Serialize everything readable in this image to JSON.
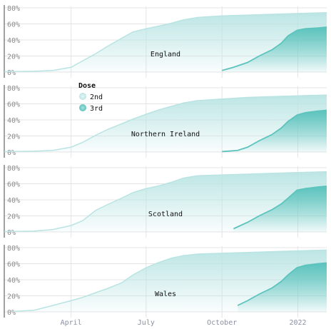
{
  "chart_data": {
    "type": "area",
    "facets": [
      "England",
      "Northern Ireland",
      "Scotland",
      "Wales"
    ],
    "y_ticks": [
      "0%",
      "20%",
      "40%",
      "60%",
      "80%"
    ],
    "ylim": [
      0,
      80
    ],
    "x_ticks": [
      {
        "label": "April",
        "date": "2021-04-01"
      },
      {
        "label": "July",
        "date": "2021-07-01"
      },
      {
        "label": "October",
        "date": "2021-10-01"
      },
      {
        "label": "2022",
        "date": "2022-01-01"
      }
    ],
    "xlim": [
      "2021-01-10",
      "2022-02-05"
    ],
    "legend": {
      "title": "Dose",
      "position": "top-left",
      "entries": [
        {
          "name": "2nd",
          "color": "#b9e4e3"
        },
        {
          "name": "3rd",
          "color": "#62c6c1"
        }
      ]
    },
    "grid": true,
    "colors": {
      "dose2": "#b9e4e3",
      "dose3": "#5cc3bd",
      "grid": "#e4e4e4"
    },
    "series": [
      {
        "facet": "England",
        "dose2": [
          [
            "2021-01-10",
            0.5
          ],
          [
            "2021-02-15",
            1
          ],
          [
            "2021-03-10",
            2
          ],
          [
            "2021-04-01",
            6
          ],
          [
            "2021-04-15",
            14
          ],
          [
            "2021-05-01",
            23
          ],
          [
            "2021-05-15",
            32
          ],
          [
            "2021-06-01",
            42
          ],
          [
            "2021-06-15",
            50
          ],
          [
            "2021-07-01",
            54
          ],
          [
            "2021-07-15",
            57
          ],
          [
            "2021-08-01",
            61
          ],
          [
            "2021-08-15",
            65
          ],
          [
            "2021-09-01",
            68
          ],
          [
            "2021-10-01",
            70
          ],
          [
            "2021-11-01",
            71
          ],
          [
            "2021-12-01",
            72
          ],
          [
            "2022-01-01",
            73
          ],
          [
            "2022-02-05",
            74
          ]
        ],
        "dose3": [
          [
            "2021-10-01",
            2
          ],
          [
            "2021-10-15",
            6
          ],
          [
            "2021-11-01",
            12
          ],
          [
            "2021-11-15",
            20
          ],
          [
            "2021-12-01",
            28
          ],
          [
            "2021-12-12",
            36
          ],
          [
            "2021-12-20",
            45
          ],
          [
            "2021-12-31",
            52
          ],
          [
            "2022-01-10",
            54
          ],
          [
            "2022-01-25",
            55
          ],
          [
            "2022-02-05",
            56
          ]
        ]
      },
      {
        "facet": "Northern Ireland",
        "dose2": [
          [
            "2021-01-10",
            0.5
          ],
          [
            "2021-02-15",
            1
          ],
          [
            "2021-03-10",
            2
          ],
          [
            "2021-04-01",
            6
          ],
          [
            "2021-04-15",
            12
          ],
          [
            "2021-05-01",
            21
          ],
          [
            "2021-05-15",
            28
          ],
          [
            "2021-06-01",
            35
          ],
          [
            "2021-06-15",
            41
          ],
          [
            "2021-07-01",
            47
          ],
          [
            "2021-07-15",
            52
          ],
          [
            "2021-08-01",
            57
          ],
          [
            "2021-08-15",
            61
          ],
          [
            "2021-09-01",
            64
          ],
          [
            "2021-10-01",
            66
          ],
          [
            "2021-11-01",
            68
          ],
          [
            "2021-12-01",
            69
          ],
          [
            "2022-01-01",
            70
          ],
          [
            "2022-02-05",
            71
          ]
        ],
        "dose3": [
          [
            "2021-10-01",
            0.5
          ],
          [
            "2021-10-20",
            2
          ],
          [
            "2021-11-01",
            6
          ],
          [
            "2021-11-15",
            14
          ],
          [
            "2021-12-01",
            22
          ],
          [
            "2021-12-12",
            30
          ],
          [
            "2021-12-20",
            38
          ],
          [
            "2021-12-31",
            46
          ],
          [
            "2022-01-10",
            49
          ],
          [
            "2022-01-25",
            51
          ],
          [
            "2022-02-05",
            52
          ]
        ]
      },
      {
        "facet": "Scotland",
        "dose2": [
          [
            "2021-01-10",
            0.5
          ],
          [
            "2021-02-15",
            1
          ],
          [
            "2021-03-10",
            3
          ],
          [
            "2021-04-01",
            8
          ],
          [
            "2021-04-15",
            14
          ],
          [
            "2021-05-01",
            27
          ],
          [
            "2021-05-15",
            34
          ],
          [
            "2021-06-01",
            42
          ],
          [
            "2021-06-15",
            49
          ],
          [
            "2021-07-01",
            54
          ],
          [
            "2021-07-15",
            57
          ],
          [
            "2021-08-01",
            62
          ],
          [
            "2021-08-15",
            67
          ],
          [
            "2021-09-01",
            70
          ],
          [
            "2021-10-01",
            71
          ],
          [
            "2021-11-01",
            72
          ],
          [
            "2021-12-01",
            73
          ],
          [
            "2022-01-01",
            74
          ],
          [
            "2022-02-05",
            75
          ]
        ],
        "dose3": [
          [
            "2021-10-15",
            4
          ],
          [
            "2021-11-01",
            12
          ],
          [
            "2021-11-15",
            20
          ],
          [
            "2021-12-01",
            28
          ],
          [
            "2021-12-12",
            35
          ],
          [
            "2021-12-20",
            42
          ],
          [
            "2021-12-31",
            52
          ],
          [
            "2022-01-10",
            54
          ],
          [
            "2022-01-25",
            56
          ],
          [
            "2022-02-05",
            57
          ]
        ]
      },
      {
        "facet": "Wales",
        "dose2": [
          [
            "2021-01-20",
            0.5
          ],
          [
            "2021-02-15",
            2
          ],
          [
            "2021-03-10",
            8
          ],
          [
            "2021-04-01",
            14
          ],
          [
            "2021-04-15",
            18
          ],
          [
            "2021-05-01",
            24
          ],
          [
            "2021-05-15",
            29
          ],
          [
            "2021-06-01",
            36
          ],
          [
            "2021-06-15",
            46
          ],
          [
            "2021-07-01",
            55
          ],
          [
            "2021-07-15",
            61
          ],
          [
            "2021-08-01",
            67
          ],
          [
            "2021-08-15",
            70
          ],
          [
            "2021-09-01",
            72
          ],
          [
            "2021-10-01",
            73
          ],
          [
            "2021-11-01",
            74
          ],
          [
            "2021-12-01",
            75
          ],
          [
            "2022-01-01",
            76
          ],
          [
            "2022-02-05",
            77
          ]
        ],
        "dose3": [
          [
            "2021-10-20",
            8
          ],
          [
            "2021-11-01",
            14
          ],
          [
            "2021-11-15",
            22
          ],
          [
            "2021-12-01",
            30
          ],
          [
            "2021-12-12",
            38
          ],
          [
            "2021-12-20",
            46
          ],
          [
            "2021-12-31",
            55
          ],
          [
            "2022-01-10",
            58
          ],
          [
            "2022-01-25",
            60
          ],
          [
            "2022-02-05",
            61
          ]
        ]
      }
    ]
  }
}
